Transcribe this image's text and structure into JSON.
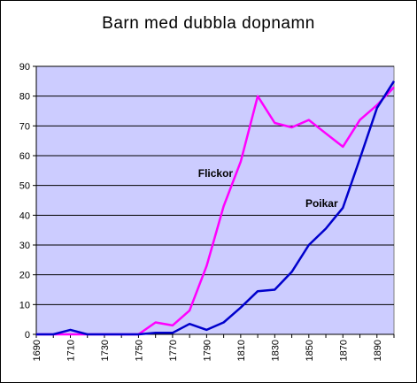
{
  "chart_data": {
    "type": "line",
    "title": "Barn med dubbla dopnamn",
    "xlabel": "",
    "ylabel": "",
    "x": [
      1690,
      1700,
      1710,
      1720,
      1730,
      1740,
      1750,
      1760,
      1770,
      1780,
      1790,
      1800,
      1810,
      1820,
      1830,
      1840,
      1850,
      1860,
      1870,
      1880,
      1890,
      1900
    ],
    "xticks": [
      "1690",
      "1710",
      "1730",
      "1750",
      "1770",
      "1790",
      "1810",
      "1830",
      "1850",
      "1870",
      "1890"
    ],
    "xlim": [
      1690,
      1900
    ],
    "ylim": [
      0,
      90
    ],
    "yticks": [
      0,
      10,
      20,
      30,
      40,
      50,
      60,
      70,
      80,
      90
    ],
    "grid": "horizontal",
    "plot_background": "#ccccff",
    "series": [
      {
        "name": "Flickor",
        "color": "#ff00ff",
        "values": [
          0,
          0,
          0,
          0,
          0,
          0,
          0,
          4,
          3,
          8,
          23,
          43,
          58,
          80,
          71,
          69.5,
          72,
          67.5,
          63,
          72,
          77,
          83
        ]
      },
      {
        "name": "Poikar",
        "color": "#0000cc",
        "values": [
          0,
          0,
          1.5,
          0,
          0,
          0,
          0,
          0.5,
          0.5,
          3.5,
          1.5,
          4,
          9,
          14.5,
          15,
          21,
          30,
          35.5,
          42.5,
          59,
          76,
          85
        ]
      }
    ]
  }
}
